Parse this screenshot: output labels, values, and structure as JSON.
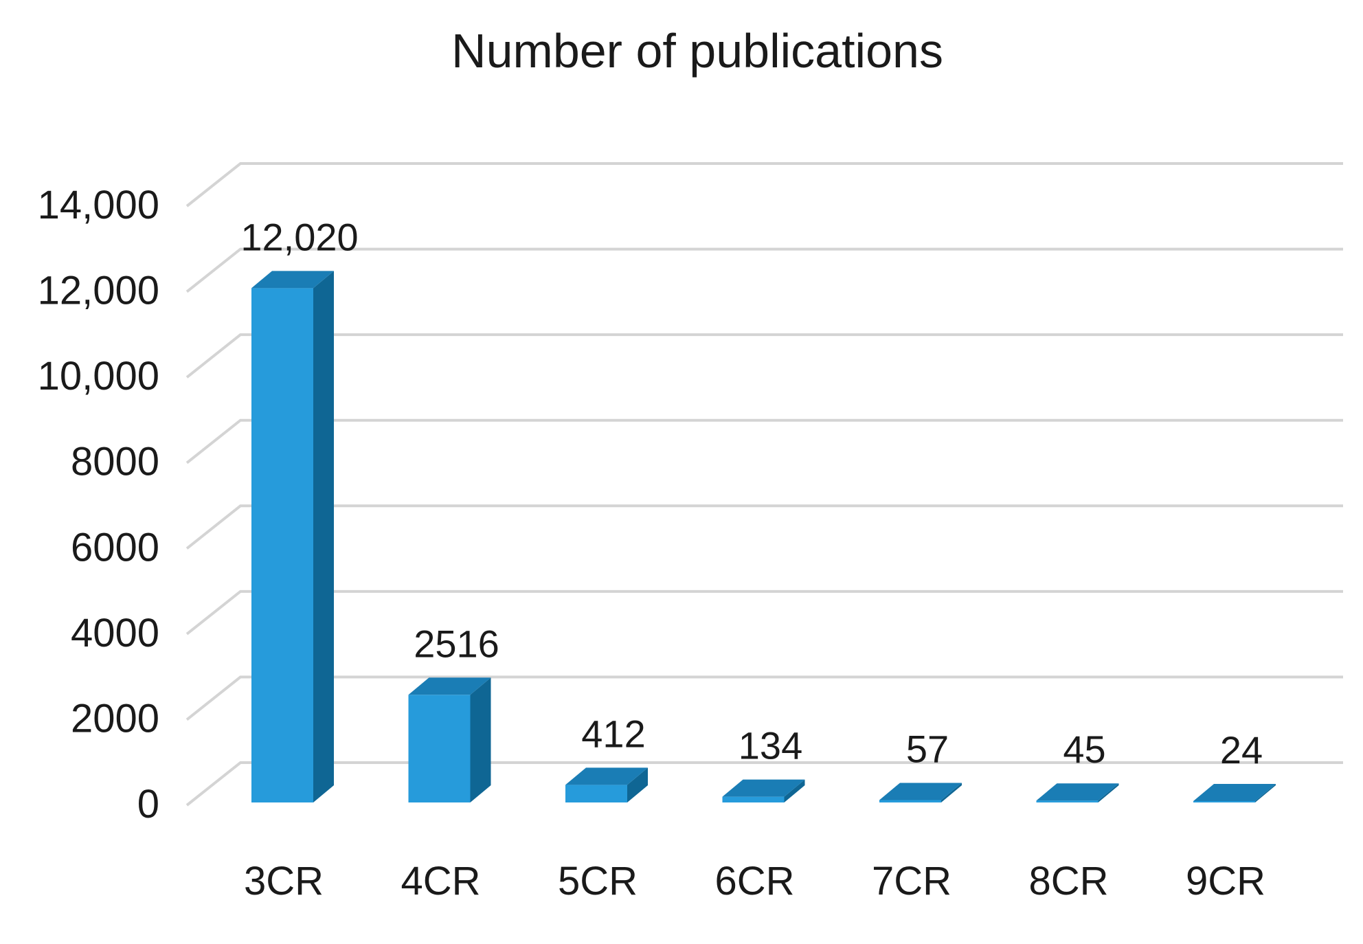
{
  "chart_data": {
    "type": "bar",
    "style": "3d-column",
    "title": "Number of publications",
    "xlabel": "",
    "ylabel": "",
    "categories": [
      "3CR",
      "4CR",
      "5CR",
      "6CR",
      "7CR",
      "8CR",
      "9CR"
    ],
    "values": [
      12020,
      2516,
      412,
      134,
      57,
      45,
      24
    ],
    "data_labels": [
      "12,020",
      "2516",
      "412",
      "134",
      "57",
      "45",
      "24"
    ],
    "ylim": [
      0,
      14000
    ],
    "yticks": [
      0,
      2000,
      4000,
      6000,
      8000,
      10000,
      12000,
      14000
    ],
    "ytick_labels": [
      "0",
      "2000",
      "4000",
      "6000",
      "8000",
      "10,000",
      "12,000",
      "14,000"
    ],
    "grid": true,
    "legend": "none",
    "colors": {
      "bar_front": "#269BDB",
      "bar_side": "#0F6694",
      "bar_top": "#1A7DB5",
      "grid": "#D4D4D4"
    }
  }
}
